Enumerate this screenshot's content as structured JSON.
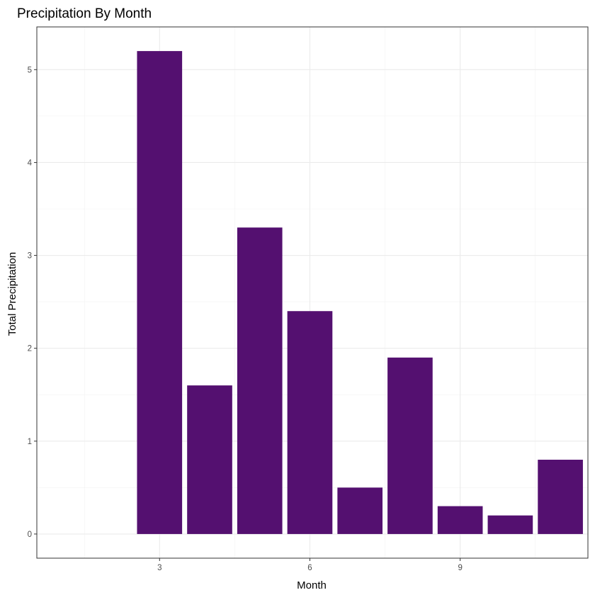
{
  "chart_data": {
    "type": "bar",
    "title": "Precipitation By Month",
    "xlabel": "Month",
    "ylabel": "Total Precipitation",
    "x": [
      3,
      4,
      5,
      6,
      7,
      8,
      9,
      10,
      11
    ],
    "values": [
      5.2,
      1.6,
      3.3,
      2.4,
      0.5,
      1.9,
      0.3,
      0.2,
      0.8
    ],
    "xlim": [
      0.55,
      11.55
    ],
    "ylim": [
      -0.26,
      5.46
    ],
    "x_ticks": [
      3,
      6,
      9
    ],
    "y_ticks": [
      0,
      1,
      2,
      3,
      4,
      5
    ],
    "bar_width": 0.9,
    "bar_color": "#541070",
    "grid": true,
    "legend": "none"
  }
}
